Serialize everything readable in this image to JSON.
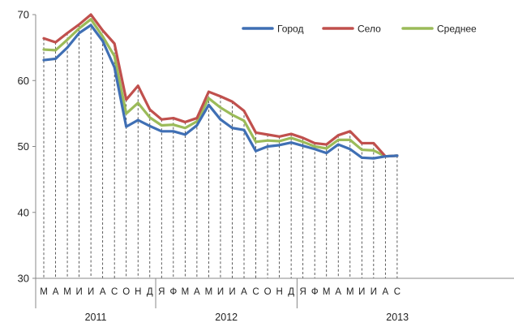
{
  "chart_data": {
    "type": "line",
    "title": "",
    "xlabel": "",
    "ylabel": "",
    "ylim": [
      30,
      70
    ],
    "yticks": [
      30,
      40,
      50,
      60,
      70
    ],
    "grid": "vertical dashed drop lines",
    "legend_position": "top-right",
    "categories": [
      "М",
      "А",
      "М",
      "И",
      "И",
      "А",
      "С",
      "О",
      "Н",
      "Д",
      "Я",
      "Ф",
      "М",
      "А",
      "М",
      "И",
      "И",
      "А",
      "С",
      "О",
      "Н",
      "Д",
      "Я",
      "Ф",
      "М",
      "А",
      "М",
      "И",
      "И",
      "А",
      "С"
    ],
    "year_groups": [
      {
        "label": "2011",
        "count": 10
      },
      {
        "label": "2012",
        "count": 12
      },
      {
        "label": "2013",
        "count": 9
      }
    ],
    "series": [
      {
        "name": "Город",
        "color": "#3f6fb4",
        "values": [
          63.1,
          63.3,
          65.0,
          67.2,
          68.4,
          66.0,
          62.0,
          53.0,
          54.0,
          53.1,
          52.3,
          52.3,
          51.8,
          53.2,
          56.3,
          54.1,
          52.8,
          52.5,
          49.3,
          50.0,
          50.2,
          50.6,
          50.1,
          49.6,
          49.0,
          50.3,
          49.6,
          48.3,
          48.2,
          48.5,
          48.6
        ]
      },
      {
        "name": "Село",
        "color": "#c0504d",
        "values": [
          66.4,
          65.8,
          67.2,
          68.5,
          70.0,
          67.6,
          65.6,
          57.1,
          59.2,
          55.6,
          54.1,
          54.3,
          53.7,
          54.3,
          58.3,
          57.6,
          56.8,
          55.4,
          52.1,
          51.8,
          51.5,
          51.9,
          51.3,
          50.5,
          50.3,
          51.7,
          52.3,
          50.5,
          50.5,
          48.5,
          48.6
        ]
      },
      {
        "name": "Среднее",
        "color": "#9bbb59",
        "values": [
          64.7,
          64.6,
          66.2,
          67.9,
          69.3,
          66.7,
          63.7,
          55.0,
          56.6,
          54.4,
          53.2,
          53.3,
          52.8,
          53.8,
          57.3,
          55.9,
          54.8,
          53.9,
          50.7,
          50.9,
          50.8,
          51.3,
          50.7,
          50.0,
          49.7,
          51.0,
          51.0,
          49.5,
          49.4,
          48.5,
          48.6
        ]
      }
    ]
  }
}
